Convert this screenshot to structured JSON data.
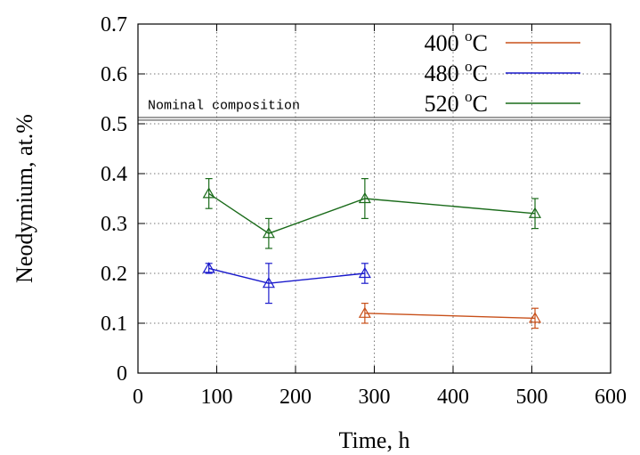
{
  "chart_data": {
    "type": "line",
    "xlabel": "Time, h",
    "ylabel": "Neodymium, at.%",
    "xlim": [
      0,
      600
    ],
    "ylim": [
      0,
      0.7
    ],
    "xticks": [
      0,
      100,
      200,
      300,
      400,
      500,
      600
    ],
    "yticks": [
      0,
      0.1,
      0.2,
      0.3,
      0.4,
      0.5,
      0.6,
      0.7
    ],
    "xtick_labels": [
      "0",
      "100",
      "200",
      "300",
      "400",
      "500",
      "600"
    ],
    "ytick_labels": [
      "0",
      "0.1",
      "0.2",
      "0.3",
      "0.4",
      "0.5",
      "0.6",
      "0.7"
    ],
    "grid": true,
    "grid_style": "dotted",
    "legend_position": "top-right",
    "marker": "open-triangle",
    "series": [
      {
        "name": "400 °C",
        "label_value": "400 ",
        "label_sup": "o",
        "label_unit": "C",
        "color": "#c8501a",
        "points": [
          {
            "x": 288,
            "y": 0.12,
            "err": 0.02
          },
          {
            "x": 504,
            "y": 0.11,
            "err": 0.02
          }
        ]
      },
      {
        "name": "480 °C",
        "label_value": "480 ",
        "label_sup": "o",
        "label_unit": "C",
        "color": "#1a1acc",
        "points": [
          {
            "x": 90,
            "y": 0.21,
            "err": 0.01
          },
          {
            "x": 166,
            "y": 0.18,
            "err": 0.04
          },
          {
            "x": 288,
            "y": 0.2,
            "err": 0.02
          }
        ]
      },
      {
        "name": "520 °C",
        "label_value": "520 ",
        "label_sup": "o",
        "label_unit": "C",
        "color": "#1a6b1a",
        "points": [
          {
            "x": 90,
            "y": 0.36,
            "err": 0.03
          },
          {
            "x": 166,
            "y": 0.28,
            "err": 0.03
          },
          {
            "x": 288,
            "y": 0.35,
            "err": 0.04
          },
          {
            "x": 504,
            "y": 0.32,
            "err": 0.03
          }
        ]
      }
    ],
    "reference_lines": [
      {
        "y": 0.51,
        "label": "Nominal composition",
        "color": "#555555"
      }
    ]
  }
}
